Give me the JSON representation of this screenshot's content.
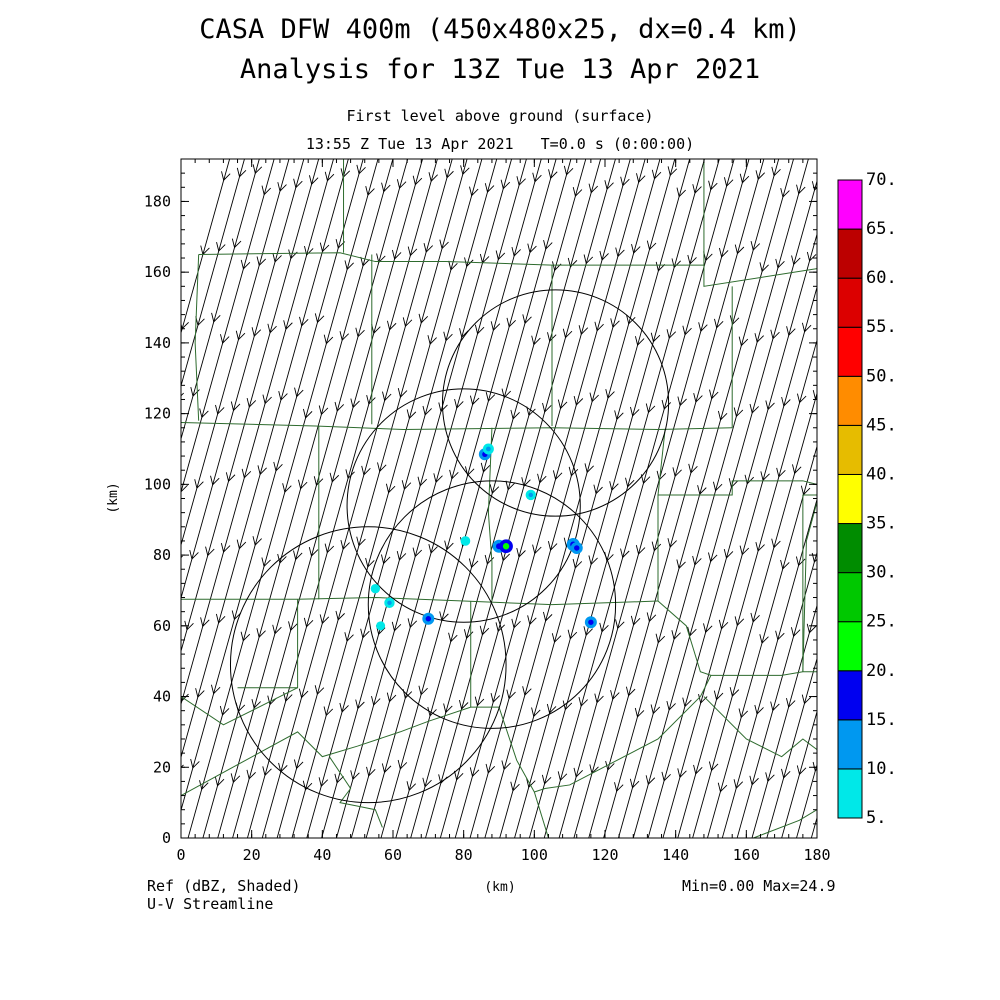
{
  "titles": {
    "line1": "CASA DFW 400m (450x480x25, dx=0.4 km)",
    "line2": "Analysis for 13Z Tue 13 Apr 2021",
    "subtitle1": "First level above ground (surface)",
    "subtitle2": "13:55 Z Tue 13 Apr 2021   T=0.0 s (0:00:00)"
  },
  "footer": {
    "field_label": "Ref (dBZ, Shaded)",
    "vector_label": "U-V Streamline",
    "stats": "Min=0.00 Max=24.9"
  },
  "chart_data": {
    "type": "heatmap",
    "xlabel": "(km)",
    "ylabel": "(km)",
    "xlim": [
      0,
      180
    ],
    "ylim": [
      0,
      192
    ],
    "xticks": [
      0,
      20,
      40,
      60,
      80,
      100,
      120,
      140,
      160,
      180
    ],
    "yticks": [
      0,
      20,
      40,
      60,
      80,
      100,
      120,
      140,
      160,
      180
    ],
    "colorbar": {
      "levels": [
        5,
        10,
        15,
        20,
        25,
        30,
        35,
        40,
        45,
        50,
        55,
        60,
        65,
        70
      ],
      "labels": [
        "5.",
        "10.",
        "15.",
        "20.",
        "25.",
        "30.",
        "35.",
        "40.",
        "45.",
        "50.",
        "55.",
        "60.",
        "65.",
        "70."
      ],
      "colors": [
        "#00e8e8",
        "#0098f0",
        "#0000f0",
        "#00ff00",
        "#00c800",
        "#008c00",
        "#ffff00",
        "#e6bc00",
        "#ff8c00",
        "#ff0000",
        "#dc0000",
        "#bc0000",
        "#ff00ff"
      ]
    },
    "min": 0.0,
    "max": 24.9,
    "radar_circles_km": [
      {
        "cx": 106,
        "cy": 123,
        "r": 32
      },
      {
        "cx": 80,
        "cy": 94,
        "r": 33
      },
      {
        "cx": 88,
        "cy": 66,
        "r": 35
      },
      {
        "cx": 53,
        "cy": 49,
        "r": 39
      }
    ],
    "echoes_km": [
      {
        "x": 86,
        "y": 108.5,
        "dbz": 15
      },
      {
        "x": 87,
        "y": 110,
        "dbz": 12
      },
      {
        "x": 99,
        "y": 97,
        "dbz": 10
      },
      {
        "x": 90,
        "y": 82.5,
        "dbz": 18
      },
      {
        "x": 92,
        "y": 82.5,
        "dbz": 20
      },
      {
        "x": 111,
        "y": 83,
        "dbz": 18
      },
      {
        "x": 112,
        "y": 82,
        "dbz": 15
      },
      {
        "x": 80.5,
        "y": 84,
        "dbz": 8
      },
      {
        "x": 70,
        "y": 62,
        "dbz": 15
      },
      {
        "x": 116,
        "y": 61,
        "dbz": 15
      },
      {
        "x": 59,
        "y": 66.5,
        "dbz": 10
      },
      {
        "x": 55,
        "y": 70.5,
        "dbz": 7
      },
      {
        "x": 56.5,
        "y": 60,
        "dbz": 6
      }
    ],
    "wind": {
      "u": -0.28,
      "v": -1.0,
      "description": "Uniform NNE-to-SSW streamline flow"
    },
    "county_boundaries_km": [
      [
        [
          0,
          117.5
        ],
        [
          38,
          116.5
        ],
        [
          63,
          115.5
        ],
        [
          105,
          116
        ],
        [
          135,
          115.5
        ],
        [
          156,
          116
        ]
      ],
      [
        [
          0,
          67.5
        ],
        [
          33,
          67.5
        ],
        [
          55,
          68
        ],
        [
          80,
          67
        ],
        [
          105,
          66
        ],
        [
          135,
          67
        ]
      ],
      [
        [
          5,
          165
        ],
        [
          45,
          165.5
        ],
        [
          55,
          163
        ],
        [
          75,
          163
        ],
        [
          105,
          162
        ],
        [
          148,
          162
        ]
      ],
      [
        [
          5,
          165
        ],
        [
          4,
          140
        ],
        [
          5,
          118
        ]
      ],
      [
        [
          46,
          192
        ],
        [
          46,
          165.5
        ]
      ],
      [
        [
          54,
          165
        ],
        [
          54,
          117
        ]
      ],
      [
        [
          105,
          162
        ],
        [
          105,
          116.5
        ]
      ],
      [
        [
          148,
          192
        ],
        [
          148,
          162
        ],
        [
          148,
          156
        ],
        [
          180,
          161
        ]
      ],
      [
        [
          156,
          156
        ],
        [
          156,
          116
        ]
      ],
      [
        [
          137,
          115.5
        ],
        [
          135,
          97
        ],
        [
          156,
          97
        ],
        [
          156,
          101
        ],
        [
          176,
          101
        ],
        [
          180,
          100
        ]
      ],
      [
        [
          135,
          97
        ],
        [
          135,
          67
        ]
      ],
      [
        [
          39,
          116.5
        ],
        [
          39,
          67.5
        ]
      ],
      [
        [
          88,
          116
        ],
        [
          87,
          92
        ],
        [
          88,
          78
        ],
        [
          88,
          67
        ]
      ],
      [
        [
          33,
          67.5
        ],
        [
          33,
          42.5
        ],
        [
          16,
          42.5
        ]
      ],
      [
        [
          0,
          40
        ],
        [
          12,
          32
        ],
        [
          33,
          42.5
        ]
      ],
      [
        [
          0,
          12
        ],
        [
          33,
          30
        ],
        [
          40,
          23
        ],
        [
          50,
          26
        ],
        [
          62,
          30
        ],
        [
          70,
          33
        ],
        [
          82,
          37
        ],
        [
          90,
          37
        ]
      ],
      [
        [
          82,
          37
        ],
        [
          82,
          67
        ]
      ],
      [
        [
          90,
          37
        ],
        [
          95,
          22
        ],
        [
          100,
          13
        ],
        [
          103,
          14
        ],
        [
          110,
          15
        ],
        [
          135,
          28
        ],
        [
          147,
          40
        ]
      ],
      [
        [
          135,
          67
        ],
        [
          143,
          60
        ],
        [
          147,
          47
        ],
        [
          150,
          46
        ],
        [
          170,
          46
        ],
        [
          176,
          47
        ],
        [
          180,
          47
        ]
      ],
      [
        [
          147,
          40
        ],
        [
          150,
          46
        ]
      ],
      [
        [
          42,
          23
        ],
        [
          48,
          14
        ],
        [
          45,
          10
        ],
        [
          50,
          9
        ],
        [
          55,
          8
        ],
        [
          57,
          3
        ]
      ],
      [
        [
          100,
          13
        ],
        [
          104,
          0
        ]
      ],
      [
        [
          176,
          47
        ],
        [
          176,
          97
        ],
        [
          180,
          97
        ]
      ],
      [
        [
          180,
          95
        ],
        [
          177,
          84
        ],
        [
          176,
          47
        ]
      ],
      [
        [
          148,
          40
        ],
        [
          160,
          28
        ],
        [
          170,
          23
        ],
        [
          176,
          28
        ],
        [
          180,
          25
        ],
        [
          180,
          8
        ],
        [
          175,
          5
        ],
        [
          162,
          0
        ]
      ]
    ]
  }
}
